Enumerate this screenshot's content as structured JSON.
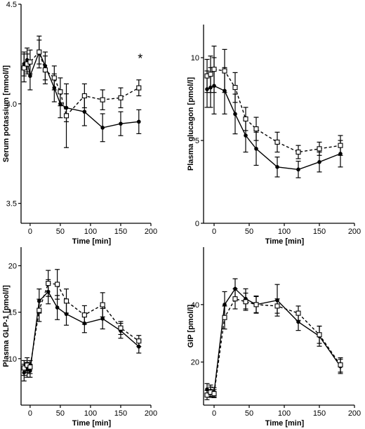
{
  "chart_data": [
    {
      "type": "line",
      "xlabel": "Time [min]",
      "ylabel": "Serum potassium [mmol/l]",
      "xlim": [
        -15,
        200
      ],
      "ylim": [
        3.4,
        4.5
      ],
      "xticks": [
        0,
        50,
        100,
        150,
        200
      ],
      "yticks": [
        3.5,
        4.0,
        4.5
      ],
      "ytick_labels": [
        "3.5",
        "4.0",
        "4.5"
      ],
      "annotations": [
        {
          "text": "*",
          "x": 180,
          "y": 4.17
        }
      ],
      "series": [
        {
          "marker": "filled-circle",
          "line": "solid",
          "x": [
            -10,
            -5,
            0,
            15,
            25,
            40,
            50,
            60,
            90,
            120,
            150,
            180
          ],
          "y": [
            4.2,
            4.22,
            4.14,
            4.26,
            4.19,
            4.08,
            4.0,
            3.98,
            3.96,
            3.88,
            3.9,
            3.91
          ],
          "err": [
            0.06,
            0.06,
            0.07,
            0.06,
            0.07,
            0.07,
            0.07,
            0.07,
            0.07,
            0.07,
            0.06,
            0.06
          ]
        },
        {
          "marker": "open-square",
          "line": "dashed",
          "x": [
            -10,
            -5,
            0,
            15,
            25,
            40,
            50,
            60,
            90,
            120,
            150,
            180
          ],
          "y": [
            4.18,
            4.2,
            4.21,
            4.26,
            4.17,
            4.13,
            4.06,
            3.94,
            4.04,
            4.02,
            4.03,
            4.08
          ],
          "err": [
            0.07,
            0.05,
            0.06,
            0.08,
            0.07,
            0.06,
            0.07,
            0.16,
            0.06,
            0.05,
            0.05,
            0.04
          ]
        }
      ]
    },
    {
      "type": "line",
      "xlabel": "Time [min]",
      "ylabel": "Plasma glucagon [pmol/l]",
      "xlim": [
        -15,
        200
      ],
      "ylim": [
        0,
        12
      ],
      "xticks": [
        0,
        50,
        100,
        150,
        200
      ],
      "yticks": [
        0,
        5,
        10
      ],
      "ytick_labels": [
        "0",
        "5",
        "10"
      ],
      "annotations": [],
      "series": [
        {
          "marker": "filled-circle",
          "line": "solid",
          "x": [
            -10,
            -5,
            0,
            15,
            30,
            45,
            60,
            90,
            120,
            150,
            180
          ],
          "y": [
            8.1,
            8.2,
            8.3,
            8.0,
            6.6,
            5.3,
            4.5,
            3.4,
            3.25,
            3.7,
            4.2
          ],
          "err": [
            1.1,
            1.2,
            1.7,
            1.4,
            1.2,
            1.0,
            1.0,
            0.6,
            0.5,
            0.6,
            0.8
          ]
        },
        {
          "marker": "open-square",
          "line": "dashed",
          "x": [
            -10,
            -5,
            0,
            15,
            30,
            45,
            60,
            90,
            120,
            150,
            180
          ],
          "y": [
            8.9,
            9.0,
            9.3,
            9.2,
            8.2,
            6.3,
            5.7,
            4.9,
            4.3,
            4.5,
            4.7
          ],
          "err": [
            1.0,
            1.1,
            1.4,
            1.3,
            0.9,
            0.7,
            0.7,
            0.6,
            0.4,
            0.4,
            0.6
          ]
        }
      ]
    },
    {
      "type": "line",
      "xlabel": "Time [min]",
      "ylabel": "Plasma GLP-1 [pmol/l]",
      "xlim": [
        -15,
        200
      ],
      "ylim": [
        5,
        22
      ],
      "xticks": [
        0,
        50,
        100,
        150,
        200
      ],
      "yticks": [
        10,
        15,
        20
      ],
      "ytick_labels": [
        "10",
        "15",
        "20"
      ],
      "annotations": [],
      "series": [
        {
          "marker": "filled-circle",
          "line": "solid",
          "x": [
            -10,
            -5,
            0,
            15,
            30,
            45,
            60,
            90,
            120,
            150,
            180
          ],
          "y": [
            8.5,
            8.8,
            8.7,
            16.2,
            17.2,
            15.5,
            14.8,
            13.8,
            14.3,
            13.0,
            11.3
          ],
          "err": [
            0.9,
            0.8,
            0.7,
            1.3,
            1.3,
            1.3,
            1.2,
            1.0,
            1.1,
            0.8,
            0.7
          ]
        },
        {
          "marker": "open-square",
          "line": "dashed",
          "x": [
            -10,
            -5,
            0,
            15,
            30,
            45,
            60,
            90,
            120,
            150,
            180
          ],
          "y": [
            9.0,
            9.3,
            9.1,
            15.2,
            18.1,
            18.0,
            16.2,
            14.7,
            15.8,
            13.3,
            11.9
          ],
          "err": [
            0.8,
            0.8,
            0.7,
            1.2,
            1.4,
            1.6,
            1.3,
            1.0,
            1.3,
            0.7,
            0.6
          ]
        }
      ]
    },
    {
      "type": "line",
      "xlabel": "Time [min]",
      "ylabel": "GIP [pmol/l]",
      "xlim": [
        -15,
        200
      ],
      "ylim": [
        5,
        60
      ],
      "xticks": [
        0,
        50,
        100,
        150,
        200
      ],
      "yticks": [
        20,
        40
      ],
      "ytick_labels": [
        "20",
        "40"
      ],
      "annotations": [],
      "series": [
        {
          "marker": "filled-circle",
          "line": "solid",
          "x": [
            -10,
            -5,
            0,
            15,
            30,
            45,
            60,
            90,
            120,
            150,
            180
          ],
          "y": [
            10.5,
            10.0,
            9.5,
            40.0,
            45.5,
            42.0,
            40.0,
            41.5,
            34.0,
            29.0,
            18.5
          ],
          "err": [
            2.0,
            2.0,
            1.6,
            4.5,
            3.5,
            3.5,
            3.0,
            5.5,
            3.0,
            3.5,
            2.5
          ]
        },
        {
          "marker": "open-square",
          "line": "dashed",
          "x": [
            -10,
            -5,
            0,
            15,
            30,
            45,
            60,
            90,
            120,
            150,
            180
          ],
          "y": [
            8.5,
            9.5,
            9.0,
            35.5,
            42.0,
            41.0,
            40.0,
            39.5,
            37.0,
            29.5,
            19.0
          ],
          "err": [
            1.6,
            1.8,
            1.4,
            4.0,
            3.5,
            3.0,
            2.8,
            2.5,
            2.5,
            3.0,
            2.5
          ]
        }
      ]
    }
  ]
}
